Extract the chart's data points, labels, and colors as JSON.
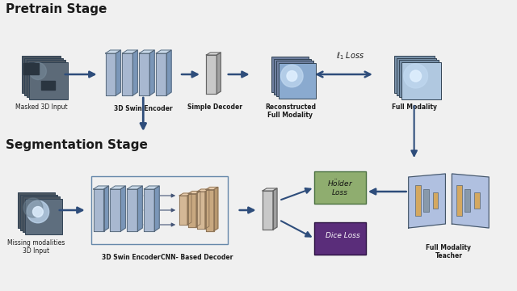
{
  "bg_color": "#f0f0f0",
  "title_pretrain": "Pretrain Stage",
  "title_seg": "Segmentation Stage",
  "labels": {
    "masked_input": "Masked 3D Input",
    "encoder_pretrain": "3D Swin Encoder",
    "simple_decoder": "Simple Decoder",
    "reconstructed": "Reconstructed\nFull Modality",
    "full_modality": "Full Modality",
    "l1_loss": "$\\ell_1$ Loss",
    "missing_input": "Missing modalities\n3D Input",
    "encoder_seg": "3D Swin Encoder",
    "cnn_decoder": "CNN- Based Decoder",
    "holder_loss": "$H\\ddot{o}lder$\nLoss",
    "dice_loss": "Dice Loss",
    "teacher": "Full Modality\nTeacher"
  },
  "arrow_color": "#2e4d7b",
  "encoder_blue": "#a8b8d0",
  "encoder_blue_dark": "#7a96b8",
  "encoder_blue_light": "#c8d8e8",
  "decoder_gray": "#c8c8c8",
  "decoder_gray_dark": "#a0a0a0",
  "decoder_gray_light": "#e0e0e0",
  "decoder_wheat": "#d4b896",
  "decoder_wheat_dark": "#b89870",
  "decoder_wheat_light": "#e8ccac",
  "green_box": "#8fad6f",
  "purple_box": "#5a2d7a",
  "teacher_bg": "#b0c0e0",
  "text_dark": "#1a1a1a"
}
